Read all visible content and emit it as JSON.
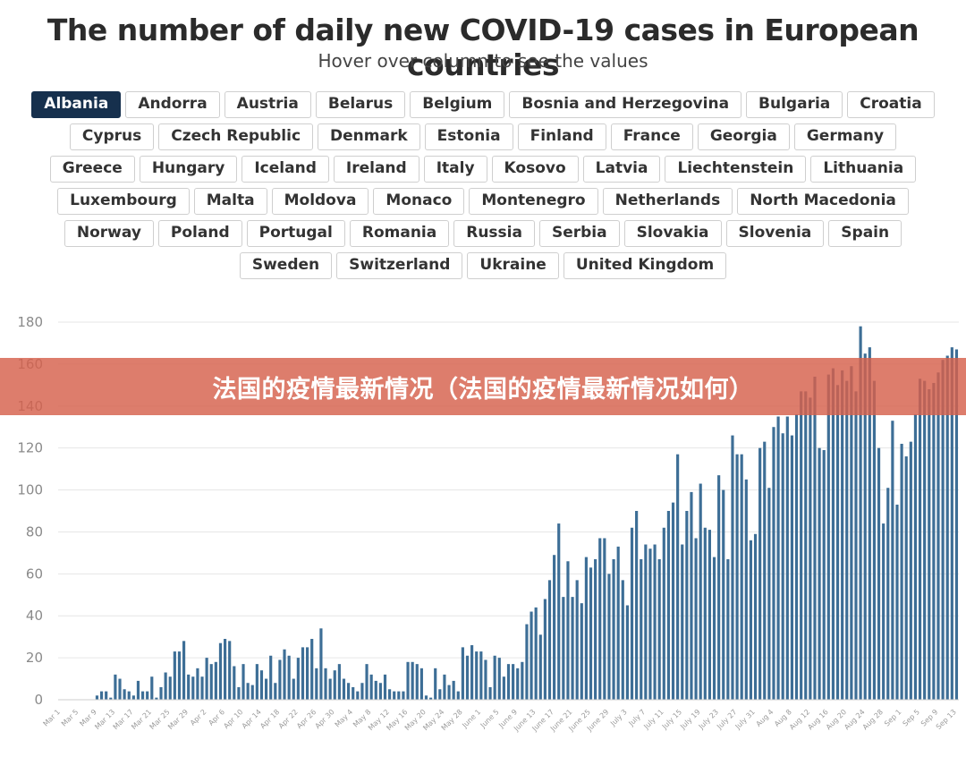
{
  "title": "The number of daily new COVID-19 cases in European countries",
  "subtitle": "Hover over column to see the values",
  "countries": [
    "Albania",
    "Andorra",
    "Austria",
    "Belarus",
    "Belgium",
    "Bosnia and Herzegovina",
    "Bulgaria",
    "Croatia",
    "Cyprus",
    "Czech Republic",
    "Denmark",
    "Estonia",
    "Finland",
    "France",
    "Georgia",
    "Germany",
    "Greece",
    "Hungary",
    "Iceland",
    "Ireland",
    "Italy",
    "Kosovo",
    "Latvia",
    "Liechtenstein",
    "Lithuania",
    "Luxembourg",
    "Malta",
    "Moldova",
    "Monaco",
    "Montenegro",
    "Netherlands",
    "North Macedonia",
    "Norway",
    "Poland",
    "Portugal",
    "Romania",
    "Russia",
    "Serbia",
    "Slovakia",
    "Slovenia",
    "Spain",
    "Sweden",
    "Switzerland",
    "Ukraine",
    "United Kingdom"
  ],
  "selected_country": "Albania",
  "overlay_caption": "法国的疫情最新情况（法国的疫情最新情况如何）",
  "colors": {
    "bar": "#3d6e96",
    "selected_button": "#16304d",
    "banner": "#d6604c",
    "grid": "#e6e6e6"
  },
  "chart_data": {
    "type": "bar",
    "ylim": [
      0,
      180
    ],
    "yticks": [
      0,
      20,
      40,
      60,
      80,
      100,
      120,
      140,
      160,
      180
    ],
    "grid": true,
    "x_tick_labels": [
      "Mar 1",
      "Mar 5",
      "Mar 9",
      "Mar 13",
      "Mar 17",
      "Mar 21",
      "Mar 25",
      "Mar 29",
      "Apr 2",
      "Apr 6",
      "Apr 10",
      "Apr 14",
      "Apr 18",
      "Apr 22",
      "Apr 26",
      "Apr 30",
      "May 4",
      "May 8",
      "May 12",
      "May 16",
      "May 20",
      "May 24",
      "May 28",
      "June 1",
      "June 5",
      "June 9",
      "June 13",
      "June 17",
      "June 21",
      "June 25",
      "June 29",
      "July 3",
      "July 7",
      "July 11",
      "July 15",
      "July 19",
      "July 23",
      "July 27",
      "July 31",
      "Aug 4",
      "Aug 8",
      "Aug 12",
      "Aug 16",
      "Aug 20",
      "Aug 24",
      "Aug 28",
      "Sep 1",
      "Sep 5",
      "Sep 9",
      "Sep 13"
    ],
    "start_date": "Mar 1",
    "values": [
      0,
      0,
      0,
      0,
      0,
      0,
      0,
      0,
      2,
      4,
      4,
      1,
      12,
      10,
      5,
      4,
      2,
      9,
      4,
      4,
      11,
      1,
      6,
      13,
      11,
      23,
      23,
      28,
      12,
      11,
      15,
      11,
      20,
      17,
      18,
      27,
      29,
      28,
      16,
      6,
      17,
      8,
      7,
      17,
      14,
      10,
      21,
      8,
      19,
      24,
      21,
      10,
      20,
      25,
      25,
      29,
      15,
      34,
      15,
      10,
      14,
      17,
      10,
      8,
      6,
      4,
      8,
      17,
      12,
      9,
      8,
      12,
      5,
      4,
      4,
      4,
      18,
      18,
      17,
      15,
      2,
      1,
      15,
      5,
      12,
      7,
      9,
      4,
      25,
      21,
      26,
      23,
      23,
      19,
      6,
      21,
      20,
      11,
      17,
      17,
      15,
      18,
      36,
      42,
      44,
      31,
      48,
      57,
      69,
      84,
      49,
      66,
      49,
      57,
      46,
      68,
      63,
      67,
      77,
      77,
      60,
      67,
      73,
      57,
      45,
      82,
      90,
      67,
      74,
      72,
      74,
      67,
      82,
      90,
      94,
      117,
      74,
      90,
      99,
      77,
      103,
      82,
      81,
      68,
      107,
      100,
      67,
      126,
      117,
      117,
      105,
      76,
      79,
      120,
      123,
      101,
      130,
      135,
      127,
      135,
      126,
      136,
      147,
      147,
      144,
      154,
      120,
      119,
      155,
      158,
      150,
      157,
      152,
      159,
      147,
      178,
      165,
      168,
      152,
      120,
      84,
      101,
      133,
      93,
      122,
      116,
      123,
      136,
      153,
      152,
      148,
      151,
      156,
      162,
      164,
      168,
      167
    ]
  }
}
